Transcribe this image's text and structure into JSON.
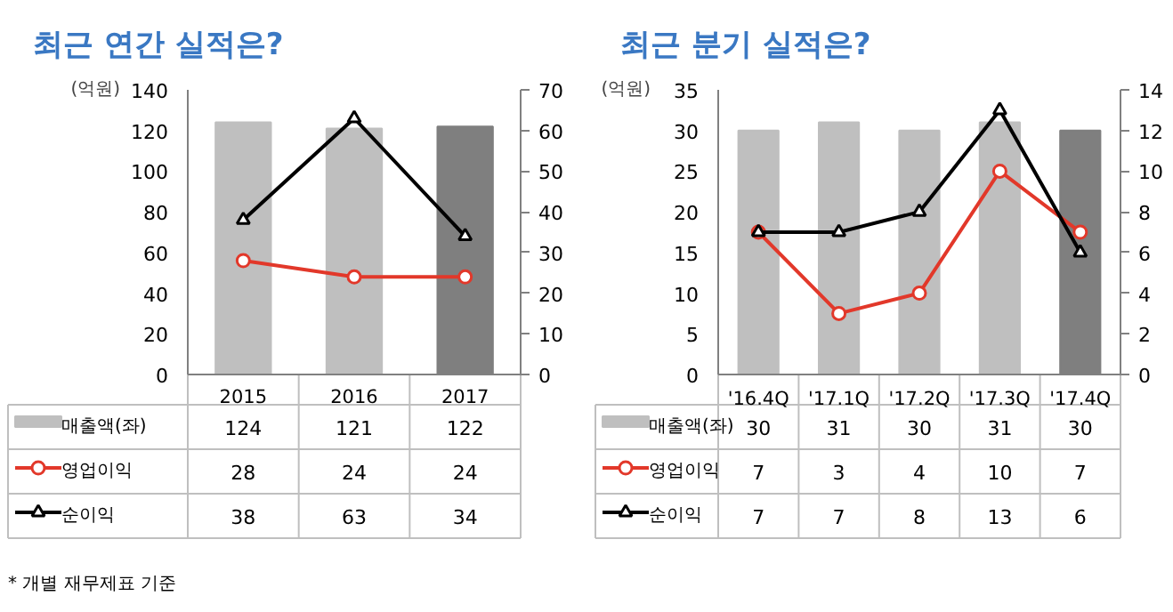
{
  "chart_data": [
    {
      "type": "bar",
      "title": "최근 연간 실적은?",
      "ylabel": "(억원)",
      "categories": [
        "2015",
        "2016",
        "2017"
      ],
      "series": [
        {
          "name": "매출액(좌)",
          "color": "#bfbfbf",
          "colors": [
            "#bfbfbf",
            "#bfbfbf",
            "#7f7f7f"
          ],
          "values": [
            124,
            121,
            122
          ]
        },
        {
          "name": "영업이익",
          "type": "line",
          "axis": "y2",
          "color": "#e2382a",
          "marker": "circle",
          "values": [
            28,
            24,
            24
          ]
        },
        {
          "name": "순이익",
          "type": "line",
          "axis": "y2",
          "color": "#000000",
          "marker": "triangle",
          "values": [
            38,
            63,
            34
          ]
        }
      ],
      "ylim": [
        0,
        140
      ],
      "yticks": [
        0,
        20,
        40,
        60,
        80,
        100,
        120,
        140
      ],
      "y2lim": [
        0,
        70
      ],
      "y2ticks": [
        0,
        10,
        20,
        30,
        40,
        50,
        60,
        70
      ],
      "data_labels": true,
      "grid": false,
      "legend": "bottom",
      "annotations": [
        "* 개별 재무제표 기준"
      ]
    },
    {
      "type": "bar",
      "title": "최근 분기 실적은?",
      "ylabel": "(억원)",
      "categories": [
        "'16.4Q",
        "'17.1Q",
        "'17.2Q",
        "'17.3Q",
        "'17.4Q"
      ],
      "series": [
        {
          "name": "매출액(좌)",
          "color": "#bfbfbf",
          "colors": [
            "#bfbfbf",
            "#bfbfbf",
            "#bfbfbf",
            "#bfbfbf",
            "#7f7f7f"
          ],
          "values": [
            30,
            31,
            30,
            31,
            30
          ]
        },
        {
          "name": "영업이익",
          "type": "line",
          "axis": "y2",
          "color": "#e2382a",
          "marker": "circle",
          "values": [
            7,
            3,
            4,
            10,
            7
          ]
        },
        {
          "name": "순이익",
          "type": "line",
          "axis": "y2",
          "color": "#000000",
          "marker": "triangle",
          "values": [
            7,
            7,
            8,
            13,
            6
          ]
        }
      ],
      "ylim": [
        0,
        35
      ],
      "yticks": [
        0,
        5,
        10,
        15,
        20,
        25,
        30,
        35
      ],
      "y2lim": [
        0,
        14
      ],
      "y2ticks": [
        0,
        2,
        4,
        6,
        8,
        10,
        12,
        14
      ],
      "data_labels": true,
      "grid": false,
      "legend": "bottom"
    }
  ]
}
